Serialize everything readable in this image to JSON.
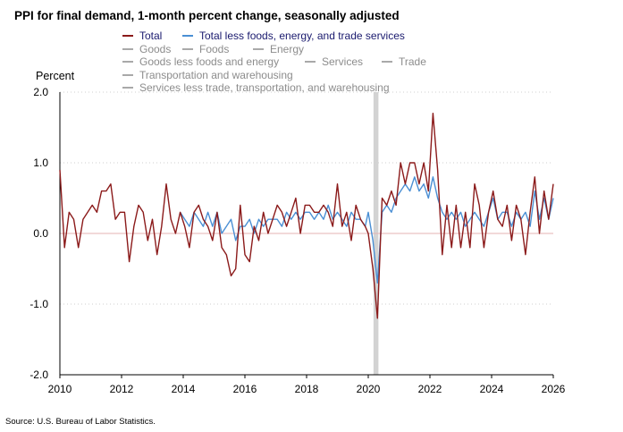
{
  "chart_data": {
    "type": "line",
    "title": "PPI for final demand, 1-month percent change, seasonally adjusted",
    "ylabel": "Percent",
    "xlabel": "",
    "ylim": [
      -2.0,
      2.0
    ],
    "xlim": [
      2010,
      2026
    ],
    "y_ticks": [
      2.0,
      1.0,
      0.0,
      -1.0,
      -2.0
    ],
    "y_tick_labels": [
      "2.0",
      "1.0",
      "0.0",
      "-1.0",
      "-2.0"
    ],
    "x_ticks": [
      2010,
      2012,
      2014,
      2016,
      2018,
      2020,
      2022,
      2024,
      2026
    ],
    "x_tick_labels": [
      "2010",
      "2012",
      "2014",
      "2016",
      "2018",
      "2020",
      "2022",
      "2024",
      "2026"
    ],
    "grid": "horizontal dotted",
    "shaded_periods": [
      {
        "label": "recession",
        "start": 2020.17,
        "end": 2020.33
      }
    ],
    "source": "Source: U.S. Bureau of Labor Statistics.",
    "legend": [
      {
        "name": "Total",
        "color": "#8b1a1a",
        "active": true
      },
      {
        "name": "Total less foods, energy, and trade services",
        "color": "#4a8fd4",
        "active": true
      },
      {
        "name": "Goods",
        "color": "#8c8c8c",
        "active": false
      },
      {
        "name": "Foods",
        "color": "#8c8c8c",
        "active": false
      },
      {
        "name": "Energy",
        "color": "#8c8c8c",
        "active": false
      },
      {
        "name": "Goods less foods and energy",
        "color": "#8c8c8c",
        "active": false
      },
      {
        "name": "Services",
        "color": "#8c8c8c",
        "active": false
      },
      {
        "name": "Trade",
        "color": "#8c8c8c",
        "active": false
      },
      {
        "name": "Transportation and warehousing",
        "color": "#8c8c8c",
        "active": false
      },
      {
        "name": "Services less trade, transportation, and warehousing",
        "color": "#8c8c8c",
        "active": false
      }
    ],
    "series": [
      {
        "name": "Total",
        "color": "#8b1a1a",
        "points": [
          [
            2010.0,
            0.9
          ],
          [
            2010.15,
            -0.2
          ],
          [
            2010.3,
            0.3
          ],
          [
            2010.45,
            0.2
          ],
          [
            2010.6,
            -0.2
          ],
          [
            2010.75,
            0.2
          ],
          [
            2010.9,
            0.3
          ],
          [
            2011.05,
            0.4
          ],
          [
            2011.2,
            0.3
          ],
          [
            2011.35,
            0.6
          ],
          [
            2011.5,
            0.6
          ],
          [
            2011.65,
            0.7
          ],
          [
            2011.8,
            0.2
          ],
          [
            2011.95,
            0.3
          ],
          [
            2012.1,
            0.3
          ],
          [
            2012.25,
            -0.4
          ],
          [
            2012.4,
            0.1
          ],
          [
            2012.55,
            0.4
          ],
          [
            2012.7,
            0.3
          ],
          [
            2012.85,
            -0.1
          ],
          [
            2013.0,
            0.2
          ],
          [
            2013.15,
            -0.3
          ],
          [
            2013.3,
            0.1
          ],
          [
            2013.45,
            0.7
          ],
          [
            2013.6,
            0.2
          ],
          [
            2013.75,
            0.0
          ],
          [
            2013.9,
            0.3
          ],
          [
            2014.05,
            0.1
          ],
          [
            2014.2,
            -0.2
          ],
          [
            2014.35,
            0.3
          ],
          [
            2014.5,
            0.4
          ],
          [
            2014.65,
            0.2
          ],
          [
            2014.8,
            0.1
          ],
          [
            2014.95,
            -0.1
          ],
          [
            2015.1,
            0.3
          ],
          [
            2015.25,
            -0.2
          ],
          [
            2015.4,
            -0.3
          ],
          [
            2015.55,
            -0.6
          ],
          [
            2015.7,
            -0.5
          ],
          [
            2015.85,
            0.4
          ],
          [
            2016.0,
            -0.3
          ],
          [
            2016.15,
            -0.4
          ],
          [
            2016.3,
            0.1
          ],
          [
            2016.45,
            -0.1
          ],
          [
            2016.6,
            0.3
          ],
          [
            2016.75,
            0.0
          ],
          [
            2016.9,
            0.2
          ],
          [
            2017.05,
            0.4
          ],
          [
            2017.2,
            0.3
          ],
          [
            2017.35,
            0.1
          ],
          [
            2017.5,
            0.3
          ],
          [
            2017.65,
            0.5
          ],
          [
            2017.8,
            0.0
          ],
          [
            2017.95,
            0.4
          ],
          [
            2018.1,
            0.4
          ],
          [
            2018.25,
            0.3
          ],
          [
            2018.4,
            0.3
          ],
          [
            2018.55,
            0.4
          ],
          [
            2018.7,
            0.3
          ],
          [
            2018.85,
            0.1
          ],
          [
            2019.0,
            0.7
          ],
          [
            2019.15,
            0.1
          ],
          [
            2019.3,
            0.3
          ],
          [
            2019.45,
            -0.1
          ],
          [
            2019.6,
            0.4
          ],
          [
            2019.75,
            0.2
          ],
          [
            2019.9,
            0.1
          ],
          [
            2020.0,
            0.0
          ],
          [
            2020.15,
            -0.5
          ],
          [
            2020.3,
            -1.2
          ],
          [
            2020.45,
            0.5
          ],
          [
            2020.6,
            0.4
          ],
          [
            2020.75,
            0.6
          ],
          [
            2020.9,
            0.4
          ],
          [
            2021.05,
            1.0
          ],
          [
            2021.2,
            0.7
          ],
          [
            2021.35,
            1.0
          ],
          [
            2021.5,
            1.0
          ],
          [
            2021.65,
            0.7
          ],
          [
            2021.8,
            1.0
          ],
          [
            2021.95,
            0.6
          ],
          [
            2022.1,
            1.7
          ],
          [
            2022.25,
            0.9
          ],
          [
            2022.4,
            -0.3
          ],
          [
            2022.55,
            0.4
          ],
          [
            2022.7,
            -0.2
          ],
          [
            2022.85,
            0.4
          ],
          [
            2023.0,
            -0.2
          ],
          [
            2023.15,
            0.3
          ],
          [
            2023.3,
            -0.2
          ],
          [
            2023.45,
            0.7
          ],
          [
            2023.6,
            0.4
          ],
          [
            2023.75,
            -0.2
          ],
          [
            2023.9,
            0.3
          ],
          [
            2024.05,
            0.6
          ],
          [
            2024.2,
            0.2
          ],
          [
            2024.35,
            0.1
          ],
          [
            2024.5,
            0.4
          ],
          [
            2024.65,
            -0.1
          ],
          [
            2024.8,
            0.4
          ],
          [
            2024.95,
            0.2
          ],
          [
            2025.1,
            -0.3
          ],
          [
            2025.25,
            0.3
          ],
          [
            2025.4,
            0.8
          ],
          [
            2025.55,
            0.0
          ],
          [
            2025.7,
            0.6
          ],
          [
            2025.85,
            0.2
          ],
          [
            2026.0,
            0.7
          ]
        ]
      },
      {
        "name": "Total less foods, energy, and trade services",
        "color": "#4a8fd4",
        "points": [
          [
            2013.9,
            0.3
          ],
          [
            2014.05,
            0.2
          ],
          [
            2014.2,
            0.1
          ],
          [
            2014.35,
            0.3
          ],
          [
            2014.5,
            0.2
          ],
          [
            2014.65,
            0.1
          ],
          [
            2014.8,
            0.3
          ],
          [
            2014.95,
            0.1
          ],
          [
            2015.1,
            0.3
          ],
          [
            2015.25,
            0.0
          ],
          [
            2015.4,
            0.1
          ],
          [
            2015.55,
            0.2
          ],
          [
            2015.7,
            -0.1
          ],
          [
            2015.85,
            0.1
          ],
          [
            2016.0,
            0.1
          ],
          [
            2016.15,
            0.2
          ],
          [
            2016.3,
            0.0
          ],
          [
            2016.45,
            0.2
          ],
          [
            2016.6,
            0.1
          ],
          [
            2016.75,
            0.2
          ],
          [
            2016.9,
            0.2
          ],
          [
            2017.05,
            0.2
          ],
          [
            2017.2,
            0.1
          ],
          [
            2017.35,
            0.3
          ],
          [
            2017.5,
            0.2
          ],
          [
            2017.65,
            0.3
          ],
          [
            2017.8,
            0.2
          ],
          [
            2017.95,
            0.3
          ],
          [
            2018.1,
            0.3
          ],
          [
            2018.25,
            0.2
          ],
          [
            2018.4,
            0.3
          ],
          [
            2018.55,
            0.2
          ],
          [
            2018.7,
            0.4
          ],
          [
            2018.85,
            0.2
          ],
          [
            2019.0,
            0.3
          ],
          [
            2019.15,
            0.2
          ],
          [
            2019.3,
            0.1
          ],
          [
            2019.45,
            0.3
          ],
          [
            2019.6,
            0.2
          ],
          [
            2019.75,
            0.2
          ],
          [
            2019.9,
            0.1
          ],
          [
            2020.0,
            0.3
          ],
          [
            2020.15,
            -0.1
          ],
          [
            2020.3,
            -0.7
          ],
          [
            2020.45,
            0.3
          ],
          [
            2020.6,
            0.4
          ],
          [
            2020.75,
            0.3
          ],
          [
            2020.9,
            0.5
          ],
          [
            2021.05,
            0.6
          ],
          [
            2021.2,
            0.7
          ],
          [
            2021.35,
            0.6
          ],
          [
            2021.5,
            0.8
          ],
          [
            2021.65,
            0.6
          ],
          [
            2021.8,
            0.7
          ],
          [
            2021.95,
            0.5
          ],
          [
            2022.1,
            0.8
          ],
          [
            2022.25,
            0.5
          ],
          [
            2022.4,
            0.3
          ],
          [
            2022.55,
            0.2
          ],
          [
            2022.7,
            0.3
          ],
          [
            2022.85,
            0.2
          ],
          [
            2023.0,
            0.3
          ],
          [
            2023.15,
            0.1
          ],
          [
            2023.3,
            0.2
          ],
          [
            2023.45,
            0.3
          ],
          [
            2023.6,
            0.2
          ],
          [
            2023.75,
            0.1
          ],
          [
            2023.9,
            0.3
          ],
          [
            2024.05,
            0.5
          ],
          [
            2024.2,
            0.2
          ],
          [
            2024.35,
            0.3
          ],
          [
            2024.5,
            0.3
          ],
          [
            2024.65,
            0.1
          ],
          [
            2024.8,
            0.3
          ],
          [
            2024.95,
            0.2
          ],
          [
            2025.1,
            0.3
          ],
          [
            2025.25,
            0.1
          ],
          [
            2025.4,
            0.6
          ],
          [
            2025.55,
            0.2
          ],
          [
            2025.7,
            0.5
          ],
          [
            2025.85,
            0.2
          ],
          [
            2026.0,
            0.5
          ]
        ]
      }
    ]
  }
}
